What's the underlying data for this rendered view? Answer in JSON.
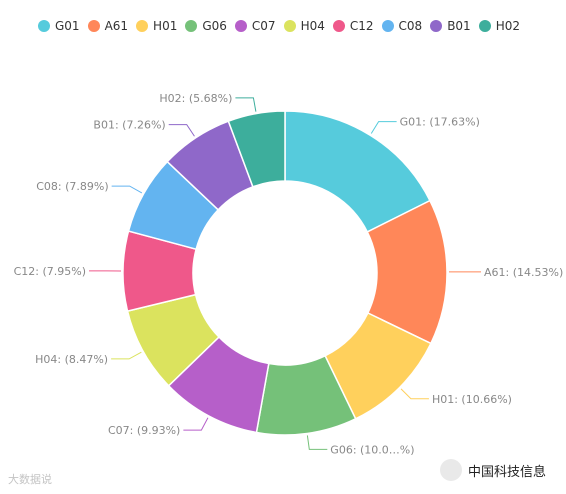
{
  "chart_data": {
    "type": "pie",
    "categories": [
      "G01",
      "A61",
      "H01",
      "G06",
      "C07",
      "H04",
      "C12",
      "C08",
      "B01",
      "H02"
    ],
    "values": [
      17.63,
      14.53,
      10.66,
      10.0,
      9.93,
      8.47,
      7.95,
      7.89,
      7.26,
      5.68
    ],
    "labels": [
      "G01: (17.63%)",
      "A61: (14.53%)",
      "H01: (10.66%)",
      "G06: (10.0…%)",
      "C07: (9.93%)",
      "H04: (8.47%)",
      "C12: (7.95%)",
      "C08: (7.89%)",
      "B01: (7.26%)",
      "H02: (5.68%)"
    ],
    "colors": [
      "#56cbdc",
      "#ff8759",
      "#ffd05c",
      "#75c179",
      "#b65fc9",
      "#dbe35e",
      "#ef588a",
      "#63b4f0",
      "#8f68c9",
      "#3dae9c"
    ],
    "donut": true,
    "legend_position": "top"
  },
  "watermarks": {
    "left_text": "大数据说",
    "right_text": "中国科技信息"
  }
}
